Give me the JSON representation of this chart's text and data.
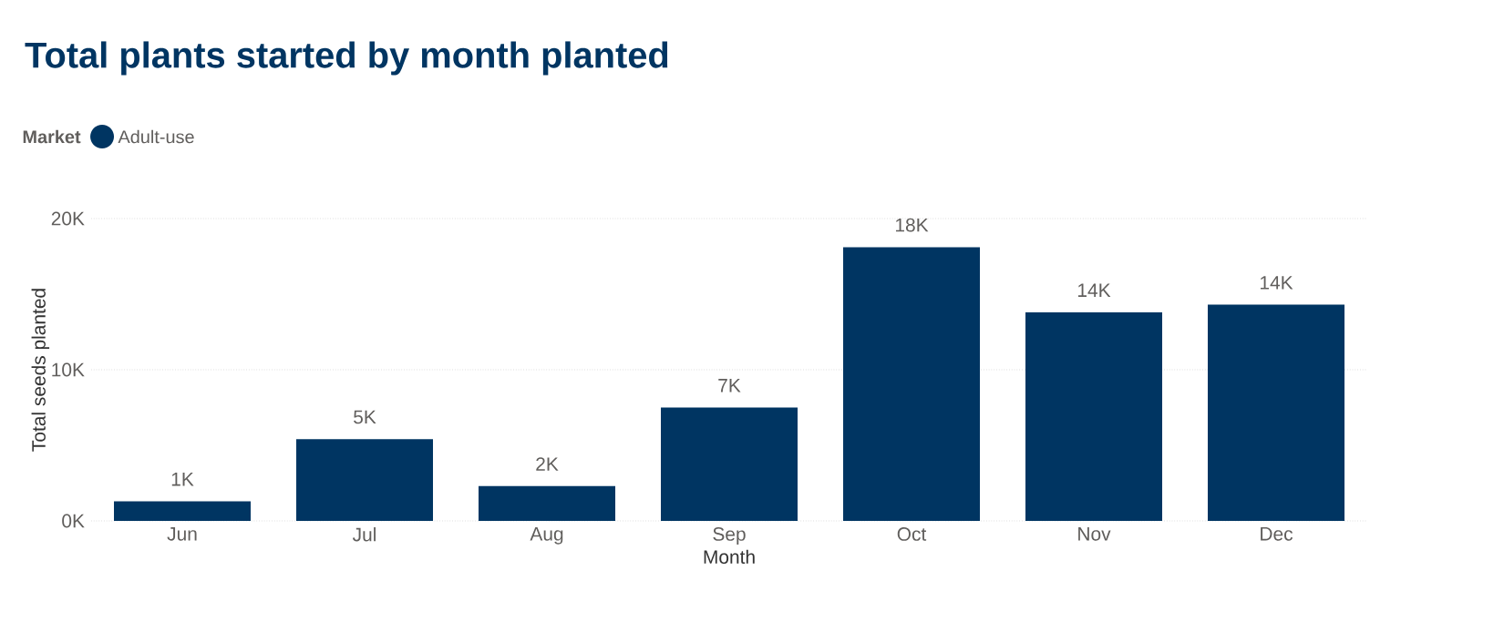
{
  "chart_data": {
    "type": "bar",
    "title": "Total plants started by month planted",
    "legend_title": "Market",
    "legend": "top left",
    "xlabel": "Month",
    "ylabel": "Total seeds planted",
    "categories": [
      "Jun",
      "Jul",
      "Aug",
      "Sep",
      "Oct",
      "Nov",
      "Dec"
    ],
    "series": [
      {
        "name": "Adult-use",
        "color": "#003562",
        "values": [
          1300,
          5400,
          2300,
          7500,
          18100,
          13800,
          14300
        ],
        "value_labels": [
          "1K",
          "5K",
          "2K",
          "7K",
          "18K",
          "14K",
          "14K"
        ]
      }
    ],
    "ylim": [
      0,
      20000
    ],
    "yticks": [
      {
        "value": 0,
        "label": "0K"
      },
      {
        "value": 10000,
        "label": "10K"
      },
      {
        "value": 20000,
        "label": "20K"
      }
    ],
    "grid": "y"
  }
}
